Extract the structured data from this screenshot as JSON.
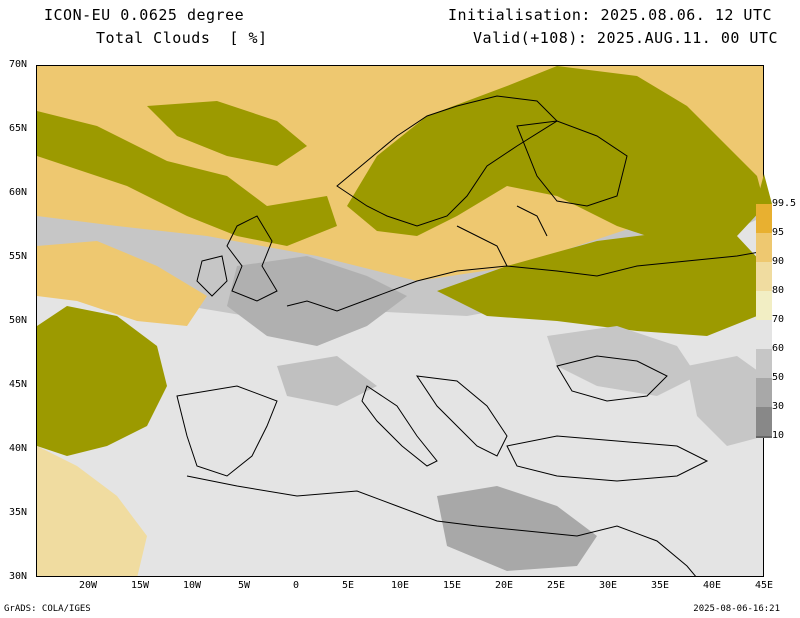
{
  "header": {
    "model": "ICON-EU 0.0625 degree",
    "variable": "Total Clouds  [ %]",
    "init": "Initialisation: 2025.08.06. 12 UTC",
    "valid": "Valid(+108): 2025.AUG.11. 00 UTC"
  },
  "axes": {
    "lat_labels": [
      "70N",
      "65N",
      "60N",
      "55N",
      "50N",
      "45N",
      "40N",
      "35N",
      "30N"
    ],
    "lon_labels": [
      "20W",
      "15W",
      "10W",
      "5W",
      "0",
      "5E",
      "10E",
      "15E",
      "20E",
      "25E",
      "30E",
      "35E",
      "40E",
      "45E"
    ],
    "lon_range": [
      -25,
      45
    ],
    "lat_range": [
      30,
      70
    ]
  },
  "legend": {
    "levels": [
      "99.5",
      "95",
      "90",
      "80",
      "70",
      "60",
      "50",
      "30",
      "10"
    ],
    "colors": [
      "#9c9a00",
      "#e8b030",
      "#eec870",
      "#f0dca0",
      "#f2eec4",
      "#e4e4e4",
      "#c6c6c6",
      "#a8a8a8",
      "#888888",
      "#666666"
    ]
  },
  "footer": {
    "left": "GrADS: COLA/IGES",
    "right": "2025-08-06-16:21"
  }
}
